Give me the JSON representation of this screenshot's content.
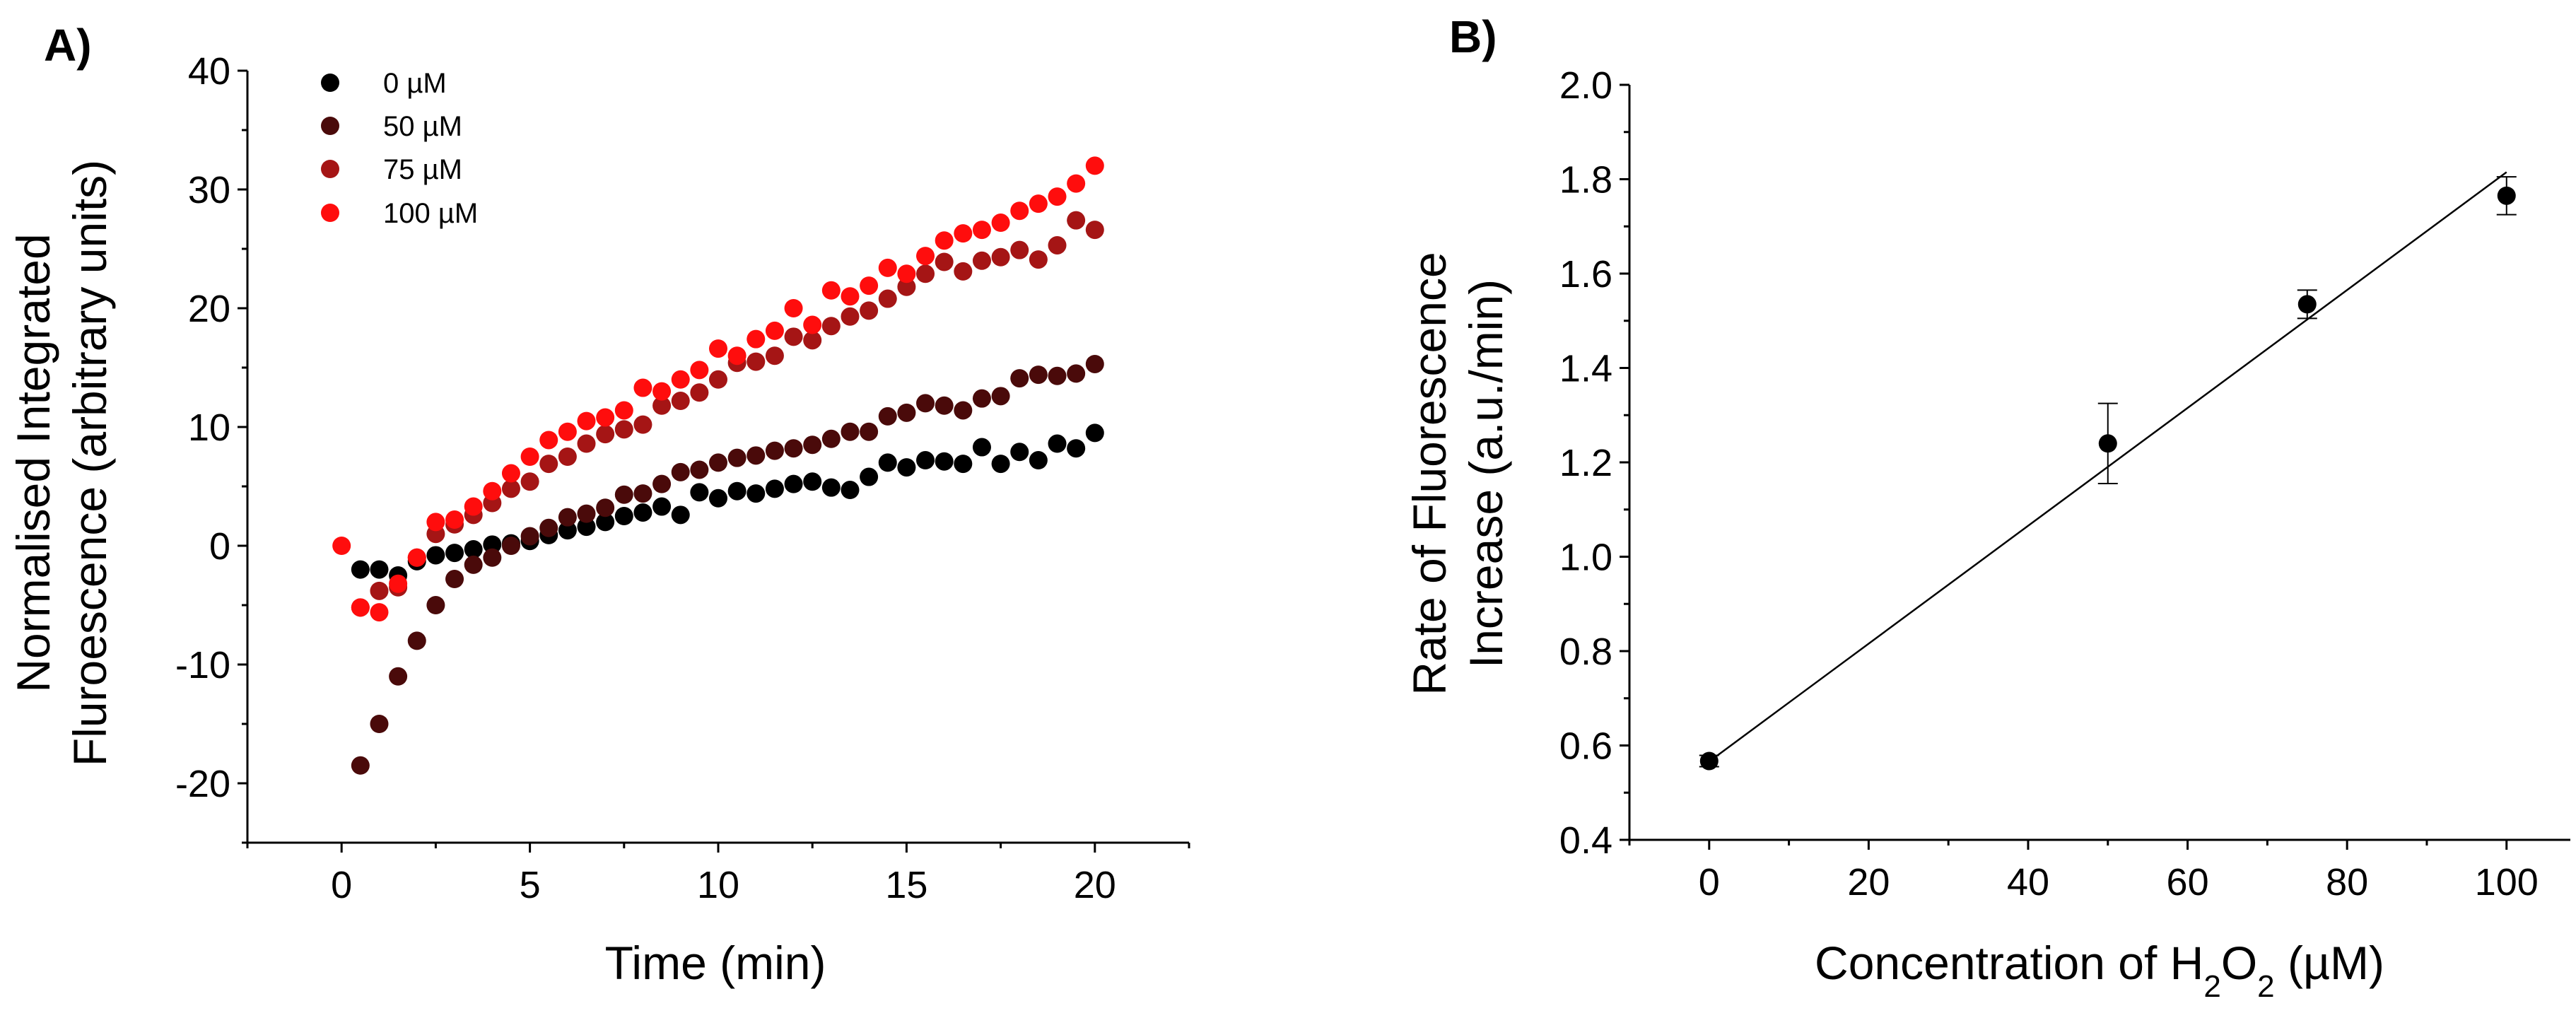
{
  "chart_data": [
    {
      "panel_label": "A)",
      "type": "scatter",
      "title": "",
      "xlabel": "Time (min)",
      "ylabel_lines": [
        "Normalised Integrated",
        "Fluroescence (arbitrary units)"
      ],
      "xlim": [
        -2.5,
        22.5
      ],
      "ylim": [
        -25,
        40
      ],
      "xticks": [
        0,
        5,
        10,
        15,
        20
      ],
      "xtick_labels": [
        "0",
        "5",
        "10",
        "15",
        "20"
      ],
      "yticks": [
        -20,
        -10,
        0,
        10,
        20,
        30,
        40
      ],
      "ytick_labels": [
        "-20",
        "-10",
        "0",
        "10",
        "20",
        "30",
        "40"
      ],
      "legend_position": "top-left",
      "series": [
        {
          "name": "0 µM",
          "color": "#000000",
          "x": [
            0.5,
            1,
            1.5,
            2,
            2.5,
            3,
            3.5,
            4,
            4.5,
            5,
            5.5,
            6,
            6.5,
            7,
            7.5,
            8,
            8.5,
            9,
            9.5,
            10,
            10.5,
            11,
            11.5,
            12,
            12.5,
            13,
            13.5,
            14,
            14.5,
            15,
            15.5,
            16,
            16.5,
            17,
            17.5,
            18,
            18.5,
            19,
            19.5,
            20
          ],
          "y": [
            -2.0,
            -2.0,
            -2.5,
            -1.3,
            -0.8,
            -0.6,
            -0.3,
            0.1,
            0.2,
            0.4,
            0.9,
            1.3,
            1.6,
            2.0,
            2.5,
            2.8,
            3.3,
            2.6,
            4.5,
            4.0,
            4.6,
            4.4,
            4.8,
            5.2,
            5.4,
            4.9,
            4.7,
            5.8,
            7.0,
            6.6,
            7.2,
            7.1,
            6.9,
            8.3,
            6.9,
            7.9,
            7.2,
            8.6,
            8.2,
            9.5
          ]
        },
        {
          "name": "50 µM",
          "color": "#4a0a0a",
          "x": [
            0.5,
            1,
            1.5,
            2,
            2.5,
            3,
            3.5,
            4,
            4.5,
            5,
            5.5,
            6,
            6.5,
            7,
            7.5,
            8,
            8.5,
            9,
            9.5,
            10,
            10.5,
            11,
            11.5,
            12,
            12.5,
            13,
            13.5,
            14,
            14.5,
            15,
            15.5,
            16,
            16.5,
            17,
            17.5,
            18,
            18.5,
            19,
            19.5,
            20
          ],
          "y": [
            -18.5,
            -15.0,
            -11.0,
            -8.0,
            -5.0,
            -2.8,
            -1.6,
            -1.0,
            0.0,
            0.8,
            1.5,
            2.4,
            2.7,
            3.2,
            4.3,
            4.4,
            5.2,
            6.2,
            6.4,
            7.0,
            7.4,
            7.6,
            8.0,
            8.2,
            8.5,
            9.0,
            9.6,
            9.6,
            10.9,
            11.2,
            12.0,
            11.8,
            11.4,
            12.4,
            12.6,
            14.1,
            14.4,
            14.3,
            14.5,
            15.3
          ]
        },
        {
          "name": "75 µM",
          "color": "#a51515",
          "x": [
            0.5,
            1,
            1.5,
            2,
            2.5,
            3,
            3.5,
            4,
            4.5,
            5,
            5.5,
            6,
            6.5,
            7,
            7.5,
            8,
            8.5,
            9,
            9.5,
            10,
            10.5,
            11,
            11.5,
            12,
            12.5,
            13,
            13.5,
            14,
            14.5,
            15,
            15.5,
            16,
            16.5,
            17,
            17.5,
            18,
            18.5,
            19,
            19.5,
            20
          ],
          "y": [
            -5.2,
            -3.8,
            -3.5,
            -1.0,
            1.0,
            1.8,
            2.6,
            3.6,
            4.8,
            5.4,
            6.9,
            7.5,
            8.6,
            9.4,
            9.8,
            10.2,
            11.8,
            12.2,
            12.9,
            14.0,
            15.4,
            15.5,
            16.0,
            17.6,
            17.3,
            18.5,
            19.3,
            19.8,
            20.8,
            21.8,
            22.9,
            23.9,
            23.1,
            24.0,
            24.3,
            24.9,
            24.1,
            25.3,
            27.4,
            26.6
          ]
        },
        {
          "name": "100 µM",
          "color": "#ff0d0d",
          "x": [
            0,
            0.5,
            1,
            1.5,
            2,
            2.5,
            3,
            3.5,
            4,
            4.5,
            5,
            5.5,
            6,
            6.5,
            7,
            7.5,
            8,
            8.5,
            9,
            9.5,
            10,
            10.5,
            11,
            11.5,
            12,
            12.5,
            13,
            13.5,
            14,
            14.5,
            15,
            15.5,
            16,
            16.5,
            17,
            17.5,
            18,
            18.5,
            19,
            19.5,
            20
          ],
          "y": [
            0.0,
            -5.2,
            -5.6,
            -3.2,
            -1.0,
            2.0,
            2.2,
            3.3,
            4.6,
            6.1,
            7.5,
            8.9,
            9.6,
            10.5,
            10.8,
            11.4,
            13.3,
            13.0,
            14.0,
            14.8,
            16.6,
            16.0,
            17.4,
            18.1,
            20.0,
            18.6,
            21.5,
            21.0,
            21.9,
            23.4,
            22.9,
            24.4,
            25.7,
            26.3,
            26.6,
            27.2,
            28.2,
            28.8,
            29.4,
            30.5,
            32.0
          ]
        }
      ]
    },
    {
      "panel_label": "B)",
      "type": "scatter",
      "title": "",
      "xlabel_parts": [
        "Concentration of H",
        "2",
        "O",
        "2",
        " (µM)"
      ],
      "ylabel_lines": [
        "Rate of Fluorescence",
        "Increase (a.u./min)"
      ],
      "xlim": [
        -10,
        108
      ],
      "ylim": [
        0.4,
        2.0
      ],
      "xticks": [
        0,
        20,
        40,
        60,
        80,
        100
      ],
      "xtick_labels": [
        "0",
        "20",
        "40",
        "60",
        "80",
        "100"
      ],
      "yticks": [
        0.4,
        0.6,
        0.8,
        1.0,
        1.2,
        1.4,
        1.6,
        1.8,
        2.0
      ],
      "ytick_labels": [
        "0.4",
        "0.6",
        "0.8",
        "1.0",
        "1.2",
        "1.4",
        "1.6",
        "1.8",
        "2.0"
      ],
      "series": [
        {
          "name": "Rate",
          "color": "#000000",
          "x": [
            0,
            50,
            75,
            100
          ],
          "y": [
            0.567,
            1.24,
            1.535,
            1.765
          ],
          "yerr": [
            0.012,
            0.085,
            0.03,
            0.04
          ]
        }
      ],
      "fit_line": {
        "x": [
          0,
          100
        ],
        "y": [
          0.566,
          1.815
        ]
      }
    }
  ]
}
